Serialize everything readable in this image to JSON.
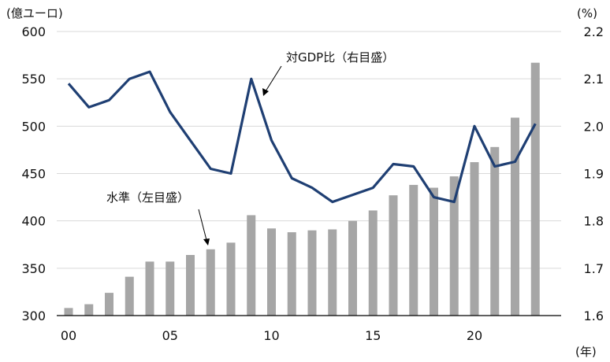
{
  "chart_data": {
    "type": "bar+line",
    "x_ticks": [
      "00",
      "05",
      "10",
      "15",
      "20"
    ],
    "x_unit": "(年)",
    "left_axis": {
      "unit": "(億ユーロ)",
      "ylim": [
        300,
        600
      ],
      "ticks": [
        "300",
        "350",
        "400",
        "450",
        "500",
        "550",
        "600"
      ]
    },
    "right_axis": {
      "unit": "(%)",
      "ylim": [
        1.6,
        2.2
      ],
      "ticks": [
        "1.6",
        "1.7",
        "1.8",
        "1.9",
        "2.0",
        "2.1",
        "2.2"
      ]
    },
    "x": [
      2000,
      2001,
      2002,
      2003,
      2004,
      2005,
      2006,
      2007,
      2008,
      2009,
      2010,
      2011,
      2012,
      2013,
      2014,
      2015,
      2016,
      2017,
      2018,
      2019,
      2020,
      2021,
      2022,
      2023
    ],
    "series": [
      {
        "name": "水準（左目盛）",
        "type": "bar",
        "axis": "left",
        "color": "#a6a6a6",
        "values": [
          308,
          312,
          324,
          341,
          357,
          357,
          364,
          370,
          377,
          406,
          392,
          388,
          390,
          391,
          400,
          411,
          427,
          438,
          435,
          447,
          462,
          478,
          509,
          567
        ]
      },
      {
        "name": "対GDP比（右目盛）",
        "type": "line",
        "axis": "right",
        "color": "#1f3f73",
        "values": [
          2.09,
          2.04,
          2.055,
          2.1,
          2.115,
          2.03,
          1.97,
          1.91,
          1.9,
          2.1,
          1.97,
          1.89,
          1.87,
          1.84,
          1.855,
          1.87,
          1.92,
          1.915,
          1.85,
          1.84,
          2.0,
          1.915,
          1.925,
          2.005
        ]
      }
    ],
    "annotations": [
      "対GDP比（右目盛）",
      "水準（左目盛）"
    ],
    "grid": "horizontal"
  }
}
